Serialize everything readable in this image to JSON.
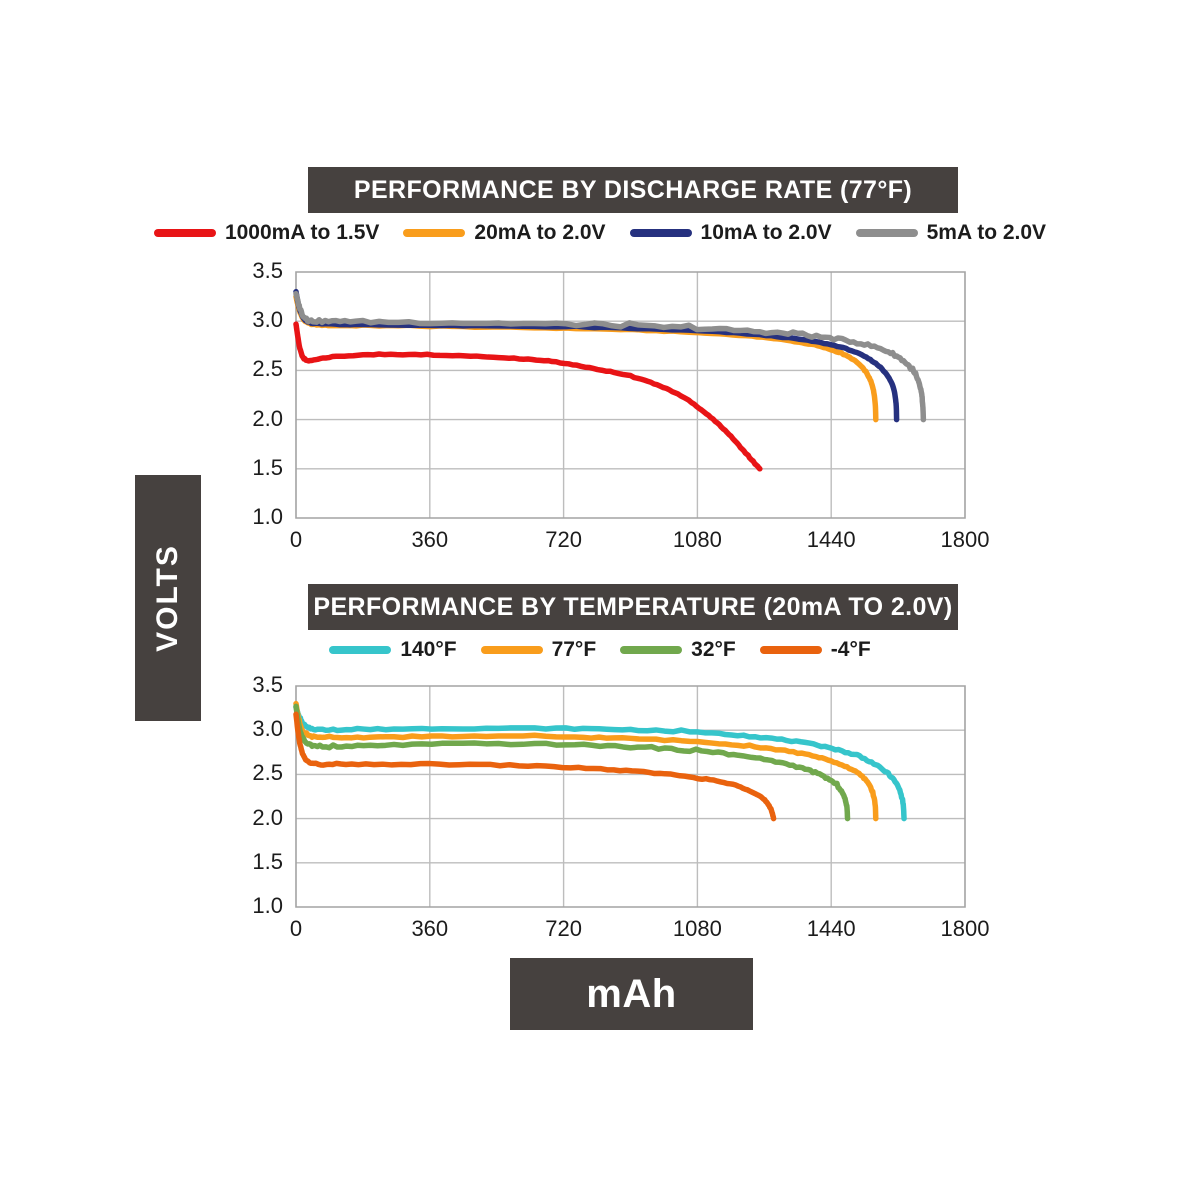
{
  "ylabel": "VOLTS",
  "xlabel": "mAh",
  "colors": {
    "panel": "#46413f",
    "grid": "#bdbdbd",
    "border": "#a3a3a3",
    "text": "#1c1c1c",
    "background": "#ffffff"
  },
  "chart_data": [
    {
      "type": "line",
      "title": "PERFORMANCE BY DISCHARGE RATE (77°F)",
      "xlabel": "mAh",
      "ylabel": "VOLTS",
      "xlim": [
        0,
        1800
      ],
      "ylim": [
        1.0,
        3.5
      ],
      "x_ticks": [
        0,
        360,
        720,
        1080,
        1440,
        1800
      ],
      "y_ticks": [
        "3.5",
        "3.0",
        "2.5",
        "2.0",
        "1.5",
        "1.0"
      ],
      "grid": true,
      "legend_position": "top",
      "series": [
        {
          "name": "1000mA to 1.5V",
          "color": "#e81416",
          "noise": 0.004,
          "points": [
            [
              0,
              2.97
            ],
            [
              12,
              2.7
            ],
            [
              30,
              2.6
            ],
            [
              80,
              2.63
            ],
            [
              180,
              2.655
            ],
            [
              320,
              2.66
            ],
            [
              470,
              2.645
            ],
            [
              600,
              2.62
            ],
            [
              700,
              2.585
            ],
            [
              800,
              2.52
            ],
            [
              900,
              2.44
            ],
            [
              980,
              2.34
            ],
            [
              1050,
              2.21
            ],
            [
              1110,
              2.04
            ],
            [
              1160,
              1.87
            ],
            [
              1205,
              1.68
            ],
            [
              1235,
              1.55
            ],
            [
              1248,
              1.5
            ]
          ]
        },
        {
          "name": "20mA to 2.0V",
          "color": "#f99d1c",
          "noise": 0.004,
          "points": [
            [
              0,
              3.25
            ],
            [
              10,
              3.1
            ],
            [
              28,
              2.99
            ],
            [
              70,
              2.96
            ],
            [
              180,
              2.955
            ],
            [
              420,
              2.945
            ],
            [
              700,
              2.93
            ],
            [
              920,
              2.91
            ],
            [
              1120,
              2.875
            ],
            [
              1270,
              2.83
            ],
            [
              1370,
              2.775
            ],
            [
              1440,
              2.71
            ],
            [
              1495,
              2.62
            ],
            [
              1530,
              2.5
            ],
            [
              1550,
              2.35
            ],
            [
              1558,
              2.18
            ],
            [
              1560,
              2.0
            ]
          ]
        },
        {
          "name": "10mA to 2.0V",
          "color": "#26317f",
          "noise": 0.004,
          "points": [
            [
              0,
              3.3
            ],
            [
              10,
              3.12
            ],
            [
              28,
              3.0
            ],
            [
              70,
              2.975
            ],
            [
              180,
              2.965
            ],
            [
              420,
              2.955
            ],
            [
              700,
              2.945
            ],
            [
              920,
              2.925
            ],
            [
              1120,
              2.895
            ],
            [
              1280,
              2.85
            ],
            [
              1400,
              2.79
            ],
            [
              1480,
              2.72
            ],
            [
              1540,
              2.62
            ],
            [
              1580,
              2.5
            ],
            [
              1605,
              2.35
            ],
            [
              1614,
              2.18
            ],
            [
              1616,
              2.0
            ]
          ]
        },
        {
          "name": "5mA to 2.0V",
          "color": "#8e8e8e",
          "noise": 0.014,
          "points": [
            [
              0,
              3.28
            ],
            [
              10,
              3.14
            ],
            [
              28,
              3.02
            ],
            [
              70,
              3.0
            ],
            [
              180,
              2.995
            ],
            [
              420,
              2.985
            ],
            [
              700,
              2.97
            ],
            [
              920,
              2.95
            ],
            [
              1120,
              2.92
            ],
            [
              1280,
              2.885
            ],
            [
              1400,
              2.845
            ],
            [
              1500,
              2.79
            ],
            [
              1580,
              2.71
            ],
            [
              1630,
              2.61
            ],
            [
              1662,
              2.48
            ],
            [
              1680,
              2.32
            ],
            [
              1686,
              2.15
            ],
            [
              1688,
              2.0
            ]
          ]
        }
      ]
    },
    {
      "type": "line",
      "title": "PERFORMANCE BY TEMPERATURE (20mA TO 2.0V)",
      "xlabel": "mAh",
      "ylabel": "VOLTS",
      "xlim": [
        0,
        1800
      ],
      "ylim": [
        1.0,
        3.5
      ],
      "x_ticks": [
        0,
        360,
        720,
        1080,
        1440,
        1800
      ],
      "y_ticks": [
        "3.5",
        "3.0",
        "2.5",
        "2.0",
        "1.5",
        "1.0"
      ],
      "grid": true,
      "legend_position": "top",
      "series": [
        {
          "name": "140°F",
          "color": "#36c5cb",
          "noise": 0.008,
          "points": [
            [
              0,
              3.26
            ],
            [
              12,
              3.12
            ],
            [
              32,
              3.03
            ],
            [
              80,
              3.005
            ],
            [
              200,
              3.01
            ],
            [
              420,
              3.02
            ],
            [
              700,
              3.02
            ],
            [
              900,
              3.005
            ],
            [
              1100,
              2.97
            ],
            [
              1250,
              2.92
            ],
            [
              1370,
              2.855
            ],
            [
              1460,
              2.775
            ],
            [
              1530,
              2.675
            ],
            [
              1580,
              2.55
            ],
            [
              1615,
              2.4
            ],
            [
              1632,
              2.2
            ],
            [
              1636,
              2.0
            ]
          ]
        },
        {
          "name": "77°F",
          "color": "#f99d1c",
          "noise": 0.008,
          "points": [
            [
              0,
              3.3
            ],
            [
              12,
              3.05
            ],
            [
              32,
              2.94
            ],
            [
              80,
              2.915
            ],
            [
              200,
              2.92
            ],
            [
              420,
              2.93
            ],
            [
              700,
              2.925
            ],
            [
              900,
              2.905
            ],
            [
              1100,
              2.865
            ],
            [
              1250,
              2.805
            ],
            [
              1360,
              2.735
            ],
            [
              1440,
              2.65
            ],
            [
              1500,
              2.545
            ],
            [
              1538,
              2.41
            ],
            [
              1556,
              2.22
            ],
            [
              1560,
              2.0
            ]
          ]
        },
        {
          "name": "32°F",
          "color": "#71a84d",
          "noise": 0.01,
          "points": [
            [
              0,
              3.27
            ],
            [
              12,
              2.98
            ],
            [
              32,
              2.85
            ],
            [
              80,
              2.81
            ],
            [
              200,
              2.825
            ],
            [
              420,
              2.845
            ],
            [
              700,
              2.84
            ],
            [
              900,
              2.81
            ],
            [
              1060,
              2.77
            ],
            [
              1190,
              2.715
            ],
            [
              1290,
              2.645
            ],
            [
              1370,
              2.56
            ],
            [
              1425,
              2.465
            ],
            [
              1462,
              2.345
            ],
            [
              1480,
              2.18
            ],
            [
              1484,
              2.0
            ]
          ]
        },
        {
          "name": "-4°F",
          "color": "#e9620e",
          "noise": 0.008,
          "points": [
            [
              0,
              3.18
            ],
            [
              10,
              2.86
            ],
            [
              26,
              2.67
            ],
            [
              60,
              2.615
            ],
            [
              150,
              2.61
            ],
            [
              360,
              2.615
            ],
            [
              600,
              2.6
            ],
            [
              800,
              2.565
            ],
            [
              950,
              2.52
            ],
            [
              1070,
              2.465
            ],
            [
              1160,
              2.4
            ],
            [
              1220,
              2.32
            ],
            [
              1258,
              2.22
            ],
            [
              1278,
              2.1
            ],
            [
              1285,
              2.0
            ]
          ]
        }
      ]
    }
  ]
}
